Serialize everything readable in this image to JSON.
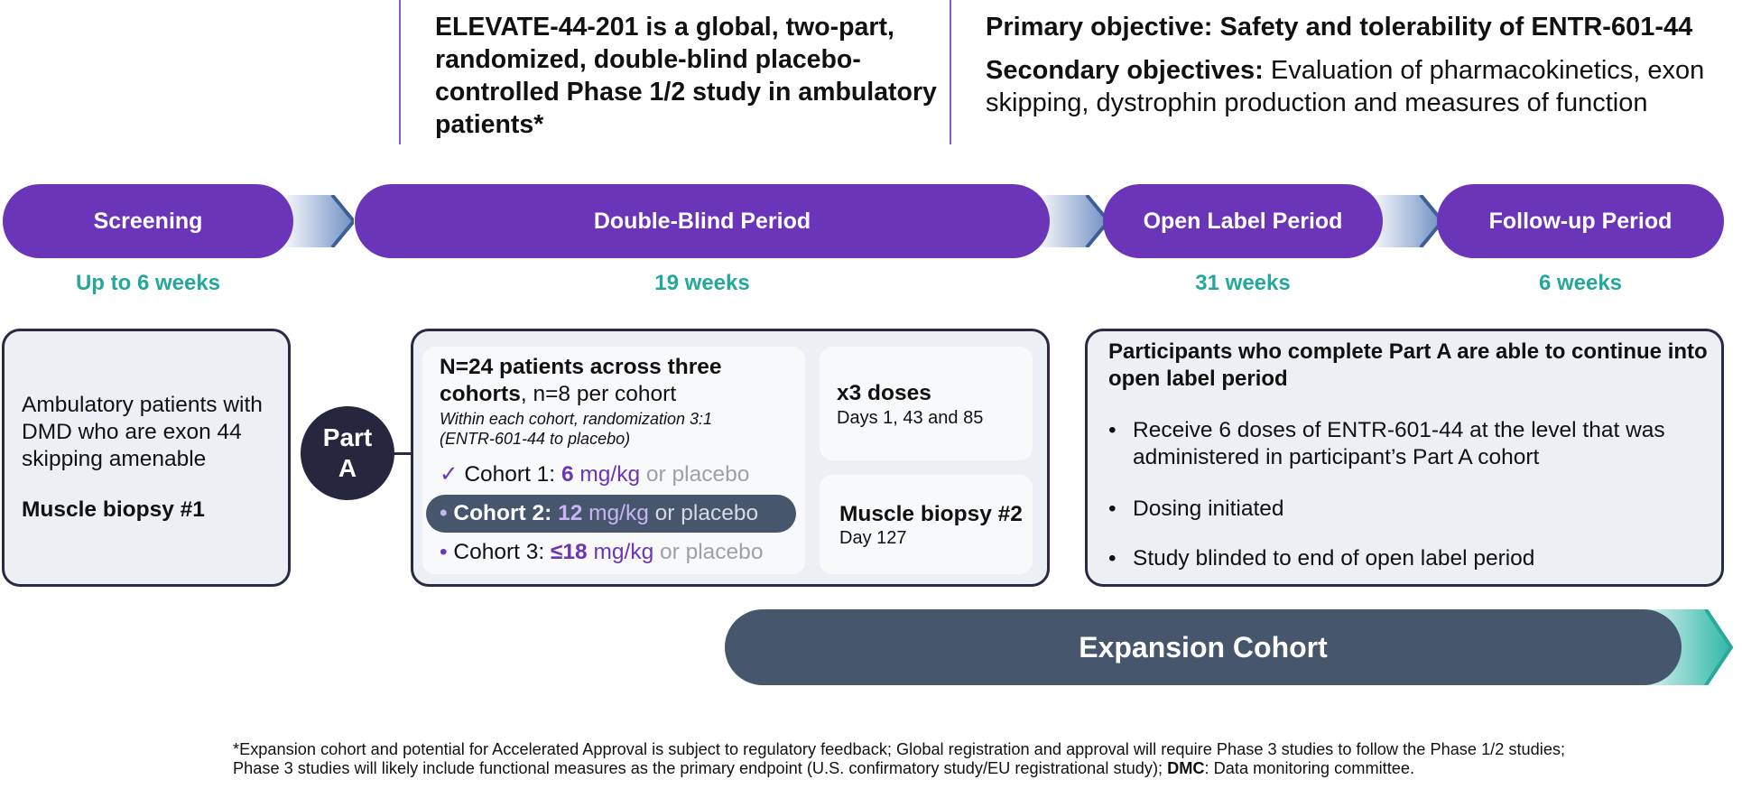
{
  "header": {
    "study_title": "ELEVATE-44-201 is a global, two-part, randomized, double-blind placebo-controlled Phase 1/2 study in ambulatory patients*",
    "primary_objective": "Primary objective: Safety and tolerability of ENTR-601-44",
    "secondary_label": "Secondary objectives:",
    "secondary_text": " Evaluation of pharmacokinetics, exon skipping, dystrophin production and measures of function"
  },
  "phases": [
    {
      "label": "Screening",
      "duration": "Up to 6 weeks"
    },
    {
      "label": "Double-Blind Period",
      "duration": "19 weeks"
    },
    {
      "label": "Open Label Period",
      "duration": "31 weeks"
    },
    {
      "label": "Follow-up Period",
      "duration": "6 weeks"
    }
  ],
  "screening_box": {
    "text": "Ambulatory patients with DMD who are exon 44 skipping amenable",
    "biopsy": "Muscle biopsy #1"
  },
  "part_a": {
    "line1": "Part",
    "line2": "A"
  },
  "double_blind_box": {
    "heading_bold": "N=24 patients across three cohorts",
    "heading_rest": ", n=8 per cohort",
    "randomization": "Within each cohort, randomization 3:1 (ENTR-601-44 to placebo)",
    "cohorts": [
      {
        "marker": "✓",
        "name": "Cohort 1: ",
        "dose": "6",
        "unit": " mg/kg",
        "or": " or placebo"
      },
      {
        "marker": "•",
        "name": "Cohort 2: ",
        "dose": "12",
        "unit": " mg/kg",
        "or": " or placebo"
      },
      {
        "marker": "•",
        "name": "Cohort 3: ",
        "dose": "≤18",
        "unit": " mg/kg",
        "or": " or placebo"
      }
    ],
    "doses_title": "x3 doses",
    "doses_days": "Days 1, 43 and 85",
    "biopsy2_title": "Muscle biopsy #2",
    "biopsy2_day": "Day 127"
  },
  "open_label_box": {
    "heading": "Participants who complete Part A are able to continue into open label period",
    "bullets": [
      "Receive 6 doses of ENTR-601-44 at the level that was administered in participant’s Part A cohort",
      "Dosing initiated",
      "Study blinded to end of open label period"
    ]
  },
  "expansion": {
    "label": "Expansion Cohort"
  },
  "footnote": {
    "part1": "*Expansion cohort and potential for Accelerated Approval is subject to regulatory feedback; Global registration and approval will require Phase 3 studies to follow the Phase 1/2 studies; Phase 3 studies will likely include functional measures as the primary endpoint (U.S. confirmatory study/EU registrational study); ",
    "dmc_label": "DMC",
    "part2": ": Data monitoring committee."
  },
  "colors": {
    "purple": "#6a35b8",
    "teal": "#23a89b",
    "navy": "#27263f",
    "slate": "#46566d"
  }
}
